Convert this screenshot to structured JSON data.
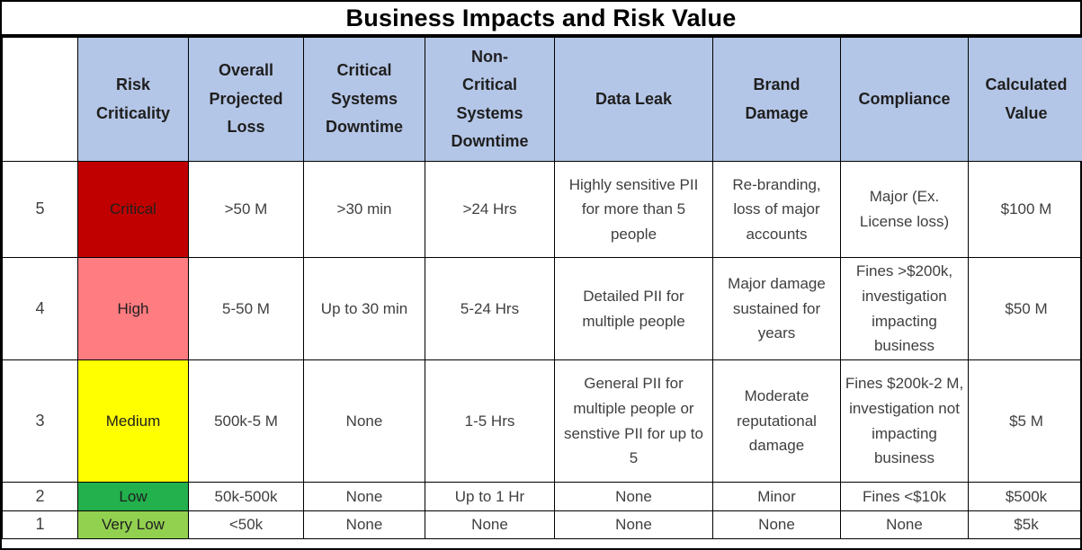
{
  "title": "Business Impacts and Risk Value",
  "colors": {
    "header_fill": "#B4C6E7",
    "critical": "#C00000",
    "high": "#FF7C80",
    "medium": "#FFFF00",
    "low": "#22B14C",
    "very_low": "#92D050"
  },
  "columns": [
    {
      "label": ""
    },
    {
      "label": "Risk\nCriticality"
    },
    {
      "label": "Overall\nProjected\nLoss"
    },
    {
      "label": "Critical\nSystems\nDowntime"
    },
    {
      "label": "Non-\nCritical\nSystems\nDowntime"
    },
    {
      "label": "Data Leak"
    },
    {
      "label": "Brand\nDamage"
    },
    {
      "label": "Compliance"
    },
    {
      "label": "Calculated\nValue"
    }
  ],
  "rows": [
    {
      "level": "5",
      "criticality": "Critical",
      "criticality_color": "#C00000",
      "overall_projected_loss": ">50 M",
      "critical_systems_downtime": ">30 min",
      "non_critical_systems_downtime": ">24 Hrs",
      "data_leak": "Highly sensitive PII for more than 5 people",
      "brand_damage": "Re-branding, loss of major accounts",
      "compliance": "Major (Ex. License loss)",
      "calculated_value": "$100 M"
    },
    {
      "level": "4",
      "criticality": "High",
      "criticality_color": "#FF7C80",
      "overall_projected_loss": "5-50 M",
      "critical_systems_downtime": "Up to 30 min",
      "non_critical_systems_downtime": "5-24 Hrs",
      "data_leak": "Detailed PII for multiple people",
      "brand_damage": "Major damage sustained for years",
      "compliance": "Fines >$200k, investigation impacting business",
      "calculated_value": "$50 M"
    },
    {
      "level": "3",
      "criticality": "Medium",
      "criticality_color": "#FFFF00",
      "overall_projected_loss": "500k-5 M",
      "critical_systems_downtime": "None",
      "non_critical_systems_downtime": "1-5 Hrs",
      "data_leak": "General PII for multiple people or senstive PII for up to 5",
      "brand_damage": "Moderate reputational damage",
      "compliance": "Fines $200k-2 M, investigation not impacting business",
      "calculated_value": "$5 M"
    },
    {
      "level": "2",
      "criticality": "Low",
      "criticality_color": "#22B14C",
      "overall_projected_loss": "50k-500k",
      "critical_systems_downtime": "None",
      "non_critical_systems_downtime": "Up to 1 Hr",
      "data_leak": "None",
      "brand_damage": "Minor",
      "compliance": "Fines <$10k",
      "calculated_value": "$500k"
    },
    {
      "level": "1",
      "criticality": "Very Low",
      "criticality_color": "#92D050",
      "overall_projected_loss": "<50k",
      "critical_systems_downtime": "None",
      "non_critical_systems_downtime": "None",
      "data_leak": "None",
      "brand_damage": "None",
      "compliance": "None",
      "calculated_value": "$5k"
    }
  ]
}
